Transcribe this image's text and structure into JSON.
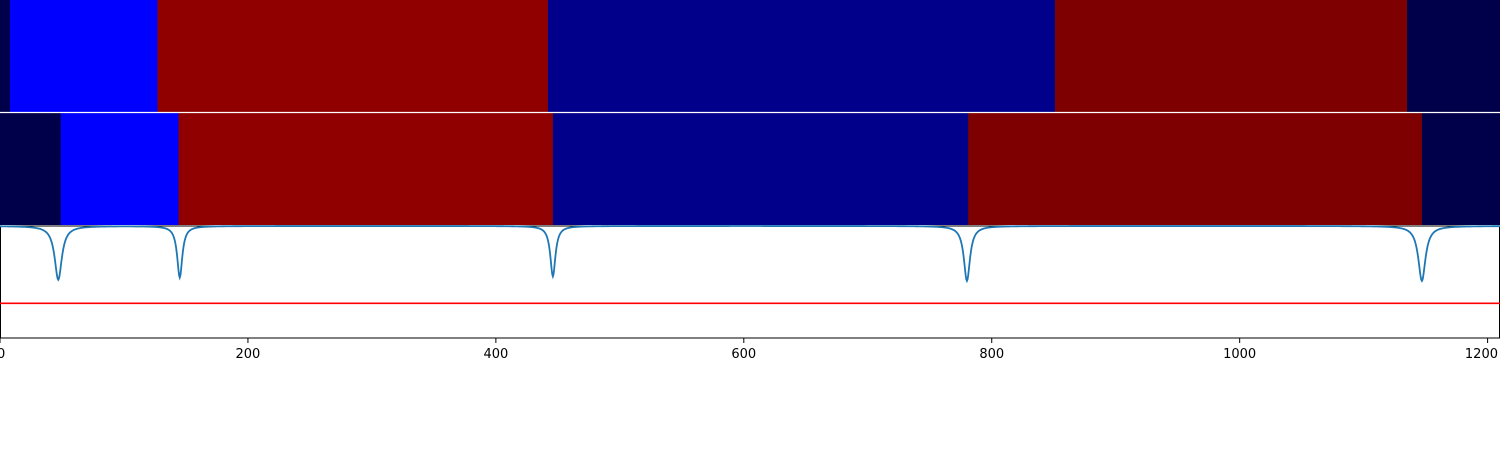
{
  "chart_data": {
    "type": "segmentation-comparison",
    "xlim": [
      0,
      1210
    ],
    "x_ticks": [
      0,
      200,
      400,
      600,
      800,
      1000,
      1200
    ],
    "colors": {
      "dark_navy": "#00004a",
      "blue": "#0000ff",
      "red": "#900000",
      "navy": "#00008b",
      "maroon": "#7f0000",
      "curve": "#1f77b4",
      "threshold": "#ff0000"
    },
    "strips": [
      {
        "name": "strip-top",
        "segments": [
          {
            "start": 0,
            "end": 8,
            "color": "#00004a"
          },
          {
            "start": 8,
            "end": 127,
            "color": "#0000ff"
          },
          {
            "start": 127,
            "end": 442,
            "color": "#900000"
          },
          {
            "start": 442,
            "end": 851,
            "color": "#00008b"
          },
          {
            "start": 851,
            "end": 1135,
            "color": "#7f0000"
          },
          {
            "start": 1135,
            "end": 1210,
            "color": "#00004a"
          }
        ]
      },
      {
        "name": "strip-middle",
        "segments": [
          {
            "start": 0,
            "end": 49,
            "color": "#00004a"
          },
          {
            "start": 49,
            "end": 144,
            "color": "#0000ff"
          },
          {
            "start": 144,
            "end": 446,
            "color": "#900000"
          },
          {
            "start": 446,
            "end": 781,
            "color": "#00008b"
          },
          {
            "start": 781,
            "end": 1147,
            "color": "#7f0000"
          },
          {
            "start": 1147,
            "end": 1210,
            "color": "#00004a"
          }
        ]
      }
    ],
    "score_panel": {
      "ylim": [
        0,
        1
      ],
      "baseline": 1.0,
      "threshold": 0.31,
      "dips": [
        {
          "x": 47,
          "min": 0.52,
          "width": 3.5
        },
        {
          "x": 145,
          "min": 0.54,
          "width": 2.5
        },
        {
          "x": 446,
          "min": 0.55,
          "width": 2.5
        },
        {
          "x": 780,
          "min": 0.51,
          "width": 3
        },
        {
          "x": 1147,
          "min": 0.51,
          "width": 3.5
        }
      ]
    }
  }
}
